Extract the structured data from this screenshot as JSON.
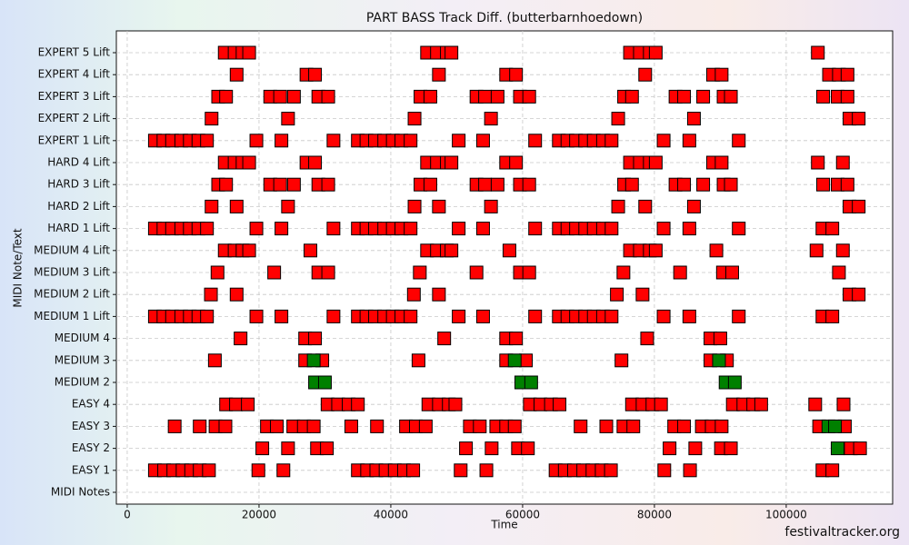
{
  "chart_data": {
    "type": "event",
    "title": "PART BASS Track Diff. (butterbarnhoedown)",
    "x_label": "Time",
    "y_label": "MIDI Note/Text",
    "watermark": "festivaltracker.org",
    "xlim": [
      -1650,
      116150
    ],
    "xticks": [
      0,
      20000,
      40000,
      60000,
      80000,
      100000
    ],
    "grid": true,
    "categories": [
      "MIDI Notes",
      "EASY 1",
      "EASY 2",
      "EASY 3",
      "EASY 4",
      "MEDIUM 2",
      "MEDIUM 3",
      "MEDIUM 4",
      "MEDIUM 1 Lift",
      "MEDIUM 2 Lift",
      "MEDIUM 3 Lift",
      "MEDIUM 4 Lift",
      "HARD 1 Lift",
      "HARD 2 Lift",
      "HARD 3 Lift",
      "HARD 4 Lift",
      "EXPERT 1 Lift",
      "EXPERT 2 Lift",
      "EXPERT 3 Lift",
      "EXPERT 4 Lift",
      "EXPERT 5 Lift"
    ],
    "series": [
      {
        "color": "#ff0000",
        "x": [
          [],
          [
            4200,
            5600,
            7000,
            8400,
            9700,
            11000,
            12400,
            19900,
            23700,
            35000,
            36400,
            37800,
            39200,
            40600,
            42000,
            43400,
            50600,
            54500,
            65000,
            66400,
            67800,
            69200,
            70600,
            72000,
            73400,
            81500,
            85400,
            105500,
            107000
          ],
          [
            20500,
            24400,
            28800,
            30300,
            51400,
            55300,
            59300,
            60800,
            82300,
            86200,
            90100,
            91600,
            109800,
            111200
          ],
          [
            7200,
            11000,
            13400,
            14900,
            21200,
            22700,
            25200,
            26800,
            28300,
            34000,
            37900,
            42300,
            43800,
            45300,
            52000,
            53500,
            56000,
            57500,
            58800,
            68800,
            72700,
            75300,
            76800,
            83000,
            84500,
            87200,
            88700,
            90200,
            105000,
            108900
          ],
          [
            15000,
            16500,
            18300,
            30400,
            32000,
            33600,
            35000,
            45700,
            47300,
            48800,
            49800,
            61100,
            62700,
            64300,
            65600,
            76600,
            78200,
            79700,
            81000,
            91900,
            93500,
            95000,
            96200,
            104400,
            108700
          ],
          [],
          [
            13300,
            27000,
            29600,
            44200,
            57500,
            60500,
            75000,
            88500,
            91000
          ],
          [
            17200,
            27000,
            28500,
            48100,
            57500,
            59000,
            78900,
            88500,
            90000
          ],
          [
            4200,
            5500,
            6800,
            8200,
            9500,
            10800,
            12100,
            19600,
            23400,
            31300,
            35000,
            36300,
            37600,
            39000,
            40300,
            41600,
            43000,
            50300,
            54000,
            61900,
            65500,
            66800,
            68100,
            69500,
            70800,
            72200,
            73500,
            81400,
            85300,
            92800,
            105500,
            107000
          ],
          [
            12700,
            16600,
            43500,
            47300,
            74300,
            78200,
            109600,
            111000
          ],
          [
            13700,
            22300,
            29000,
            30500,
            44400,
            53000,
            59600,
            61000,
            75300,
            83900,
            90400,
            91800,
            108000
          ],
          [
            14800,
            16300,
            17500,
            18500,
            27800,
            45500,
            47000,
            48500,
            49200,
            58000,
            76300,
            77800,
            79300,
            80200,
            89400,
            104600,
            108600
          ],
          [
            4200,
            5500,
            6800,
            8200,
            9500,
            10800,
            12100,
            19600,
            23400,
            31300,
            35000,
            36300,
            37600,
            39000,
            40300,
            41600,
            43000,
            50300,
            54000,
            61900,
            65500,
            66800,
            68100,
            69500,
            70800,
            72200,
            73500,
            81400,
            85300,
            92800,
            105500,
            107000
          ],
          [
            12800,
            16600,
            24400,
            43600,
            47300,
            55200,
            74500,
            78600,
            86000,
            109600,
            111000
          ],
          [
            13800,
            15000,
            21700,
            23200,
            25300,
            29000,
            30500,
            44500,
            46000,
            53000,
            54300,
            56200,
            59600,
            61000,
            75400,
            76600,
            83200,
            84500,
            87400,
            90500,
            91600,
            105600,
            107800,
            109300
          ],
          [
            14800,
            16300,
            17500,
            18500,
            27200,
            28500,
            45500,
            47000,
            48500,
            49200,
            57500,
            59000,
            76300,
            77800,
            79300,
            80200,
            88900,
            90200,
            104800,
            108600
          ],
          [
            4200,
            5500,
            6800,
            8200,
            9500,
            10800,
            12100,
            19600,
            23400,
            31300,
            35000,
            36300,
            37600,
            39000,
            40300,
            41600,
            43000,
            50300,
            54000,
            61900,
            65500,
            66800,
            68100,
            69500,
            70800,
            72200,
            73500,
            81400,
            85300,
            92800
          ],
          [
            12800,
            24400,
            43600,
            55200,
            74500,
            86000,
            109600,
            111000
          ],
          [
            13800,
            15000,
            21700,
            23200,
            25300,
            29000,
            30500,
            44500,
            46000,
            53000,
            54300,
            56200,
            59600,
            61000,
            75400,
            76600,
            83200,
            84500,
            87400,
            90500,
            91600,
            105600,
            107800,
            109300
          ],
          [
            16600,
            27200,
            28500,
            47300,
            57500,
            59000,
            78600,
            88900,
            90200,
            106500,
            108000,
            109300
          ],
          [
            14800,
            16300,
            17500,
            18500,
            45500,
            47000,
            48500,
            49200,
            76300,
            77800,
            79300,
            80200,
            104800
          ]
        ]
      },
      {
        "color": "#008000",
        "x": [
          [],
          [],
          [
            107800
          ],
          [
            106400,
            107400
          ],
          [],
          [
            28500,
            30000,
            59800,
            61300,
            90800,
            92200
          ],
          [
            28300,
            58800,
            89800
          ],
          [],
          [],
          [],
          [],
          [],
          [],
          [],
          [],
          [],
          [],
          [],
          [],
          [],
          []
        ]
      }
    ]
  }
}
